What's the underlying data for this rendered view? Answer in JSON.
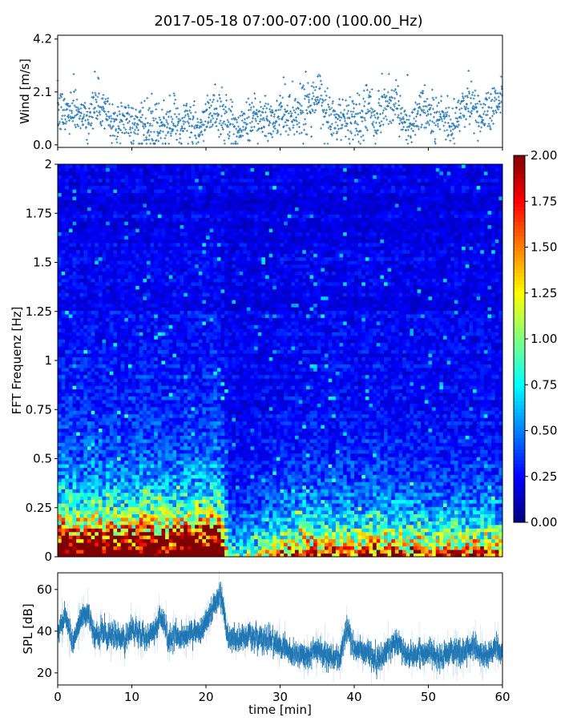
{
  "title": "2017-05-18 07:00-07:00 (100.00_Hz)",
  "chart_data": [
    {
      "type": "scatter",
      "name": "wind",
      "ylabel": "Wind [m/s]",
      "xlabel": "",
      "xlim": [
        0,
        60
      ],
      "ylim": [
        -0.1,
        4.35
      ],
      "yticks": [
        "0.0",
        "2.1",
        "4.2"
      ],
      "ytick_values": [
        0.0,
        2.1,
        4.2
      ],
      "xtick_values": [
        0,
        10,
        20,
        30,
        40,
        50,
        60
      ],
      "marker": "+",
      "color": "#1f77b4",
      "minute_mean_values": [
        1.3,
        1.2,
        1.5,
        1.3,
        1.0,
        1.6,
        1.5,
        1.0,
        0.8,
        1.2,
        0.7,
        0.8,
        0.6,
        0.6,
        0.6,
        0.8,
        0.9,
        1.0,
        0.8,
        0.5,
        0.9,
        1.5,
        1.1,
        0.9,
        0.7,
        0.8,
        1.0,
        1.2,
        1.0,
        0.9,
        1.2,
        1.3,
        1.1,
        1.5,
        1.6,
        1.9,
        1.2,
        1.0,
        0.9,
        1.0,
        1.1,
        1.0,
        1.4,
        0.9,
        1.6,
        1.8,
        1.3,
        0.9,
        0.8,
        1.5,
        1.4,
        1.0,
        1.2,
        0.8,
        1.0,
        1.5,
        1.6,
        1.1,
        1.5,
        1.7,
        1.8
      ],
      "max_value": 4.2
    },
    {
      "type": "heatmap",
      "name": "spectrogram",
      "ylabel": "FFT Frequenz [Hz]",
      "xlim": [
        0,
        60
      ],
      "ylim": [
        0,
        2
      ],
      "yticks": [
        "0",
        "0.25",
        "0.5",
        "0.75",
        "1",
        "1.25",
        "1.5",
        "1.75",
        "2"
      ],
      "ytick_values": [
        0,
        0.25,
        0.5,
        0.75,
        1,
        1.25,
        1.5,
        1.75,
        2
      ],
      "colormap": "jet",
      "clim": [
        0,
        2
      ],
      "colorbar_ticks": [
        "0.00",
        "0.25",
        "0.50",
        "0.75",
        "1.00",
        "1.25",
        "1.50",
        "1.75",
        "2.00"
      ],
      "colorbar_tick_values": [
        0,
        0.25,
        0.5,
        0.75,
        1,
        1.25,
        1.5,
        1.75,
        2
      ],
      "low_freq_power_per_min": [
        2.4,
        2.5,
        2.3,
        2.2,
        2.3,
        2.4,
        2.2,
        2.3,
        2.2,
        2.1,
        2.2,
        2.3,
        2.4,
        2.2,
        2.2,
        2.1,
        2.2,
        2.4,
        2.5,
        2.5,
        2.5,
        2.6,
        2.6,
        0.6,
        0.5,
        0.5,
        0.6,
        0.7,
        0.8,
        0.9,
        1.0,
        1.1,
        1.0,
        1.2,
        1.3,
        1.2,
        1.1,
        1.2,
        1.3,
        1.2,
        1.2,
        1.1,
        1.3,
        1.4,
        1.3,
        1.3,
        1.2,
        1.1,
        1.2,
        1.2,
        1.1,
        1.1,
        1.0,
        1.1,
        1.2,
        1.1,
        1.0,
        1.2,
        1.1,
        1.1
      ],
      "high_freq_background": 0.2
    },
    {
      "type": "area",
      "name": "spl",
      "ylabel": "SPL [dB]",
      "xlabel": "time [min]",
      "xlim": [
        0,
        60
      ],
      "ylim": [
        14.2,
        68
      ],
      "yticks": [
        "20",
        "40",
        "60"
      ],
      "ytick_values": [
        20,
        40,
        60
      ],
      "xticks": [
        "0",
        "10",
        "20",
        "30",
        "40",
        "50",
        "60"
      ],
      "xtick_values": [
        0,
        10,
        20,
        30,
        40,
        50,
        60
      ],
      "color": "#1f77b4",
      "minute_mean_values": [
        40,
        48,
        34,
        45,
        50,
        37,
        40,
        37,
        38,
        35,
        40,
        39,
        36,
        40,
        46,
        36,
        38,
        37,
        40,
        40,
        43,
        52,
        58,
        36,
        36,
        37,
        38,
        37,
        36,
        35,
        33,
        31,
        30,
        28,
        28,
        32,
        28,
        27,
        27,
        40,
        32,
        30,
        30,
        26,
        29,
        33,
        35,
        29,
        28,
        29,
        30,
        29,
        28,
        30,
        30,
        30,
        33,
        30,
        27,
        33,
        30
      ]
    }
  ]
}
